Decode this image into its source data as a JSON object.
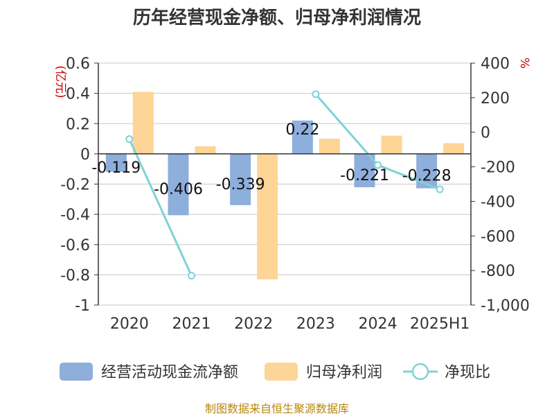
{
  "chart_data": {
    "type": "bar",
    "title": "历年经营现金净额、归母净利润情况",
    "categories": [
      "2020",
      "2021",
      "2022",
      "2023",
      "2024",
      "2025H1"
    ],
    "left_axis": {
      "unit": "(亿元)",
      "ylim": [
        -1,
        0.6
      ],
      "ticks": [
        0.6,
        0.4,
        0.2,
        0,
        -0.2,
        -0.4,
        -0.6,
        -0.8,
        -1
      ],
      "tick_labels": [
        "0.6",
        "0.4",
        "0.2",
        "0",
        "-0.2",
        "-0.4",
        "-0.6",
        "-0.8",
        "-1"
      ]
    },
    "right_axis": {
      "unit": "%",
      "ylim": [
        -1000,
        400
      ],
      "ticks": [
        400,
        200,
        0,
        -200,
        -400,
        -600,
        -800,
        -1000
      ],
      "tick_labels": [
        "400",
        "200",
        "0",
        "-200",
        "-400",
        "-600",
        "-800",
        "-1,000"
      ]
    },
    "series": [
      {
        "name": "经营活动现金流净额",
        "type": "bar",
        "axis": "left",
        "color": "#8eaedc",
        "values": [
          -0.119,
          -0.406,
          -0.339,
          0.22,
          -0.221,
          -0.228
        ],
        "labels": [
          "-0.119",
          "-0.406",
          "-0.339",
          "0.22",
          "-0.221",
          "-0.228"
        ]
      },
      {
        "name": "归母净利润",
        "type": "bar",
        "axis": "left",
        "color": "#fdd596",
        "values": [
          0.41,
          0.05,
          -0.83,
          0.1,
          0.12,
          0.07
        ]
      },
      {
        "name": "净现比",
        "type": "line",
        "axis": "right",
        "color": "#7fd2d5",
        "values": [
          -40,
          -830,
          null,
          220,
          -190,
          -330
        ]
      }
    ],
    "grid": true,
    "legend_position": "bottom"
  },
  "source_text": "制图数据来自恒生聚源数据库"
}
